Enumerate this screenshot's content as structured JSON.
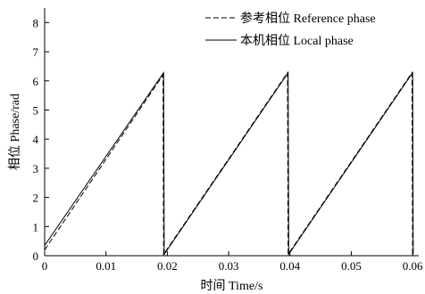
{
  "chart_data": {
    "type": "line",
    "xlabel": "时间  Time/s",
    "ylabel": "相位  Phase/rad",
    "xlim": [
      0,
      0.061
    ],
    "ylim": [
      0,
      8.5
    ],
    "x_ticks": [
      "0",
      "0.01",
      "0.02",
      "0.03",
      "0.04",
      "0.05",
      "0.06"
    ],
    "x_tick_values": [
      0,
      0.01,
      0.02,
      0.03,
      0.04,
      0.05,
      0.06
    ],
    "y_ticks": [
      "0",
      "1",
      "2",
      "3",
      "4",
      "5",
      "6",
      "7",
      "8"
    ],
    "y_tick_values": [
      0,
      1,
      2,
      3,
      4,
      5,
      6,
      7,
      8
    ],
    "legend_position": "top-right",
    "series": [
      {
        "name": "参考相位  Reference phase",
        "style": "dashed",
        "color": "#000000",
        "points": [
          [
            0,
            0.2
          ],
          [
            0.0193,
            6.2
          ],
          [
            0.0194,
            0.05
          ],
          [
            0.0396,
            6.28
          ],
          [
            0.0397,
            0.05
          ],
          [
            0.0599,
            6.28
          ],
          [
            0.06,
            0.05
          ]
        ]
      },
      {
        "name": "本机相位  Local phase",
        "style": "solid",
        "color": "#000000",
        "points": [
          [
            0,
            0.35
          ],
          [
            0.0194,
            6.28
          ],
          [
            0.0195,
            0.05
          ],
          [
            0.0397,
            6.28
          ],
          [
            0.0398,
            0.05
          ],
          [
            0.06,
            6.28
          ],
          [
            0.0601,
            0.05
          ]
        ]
      }
    ]
  }
}
